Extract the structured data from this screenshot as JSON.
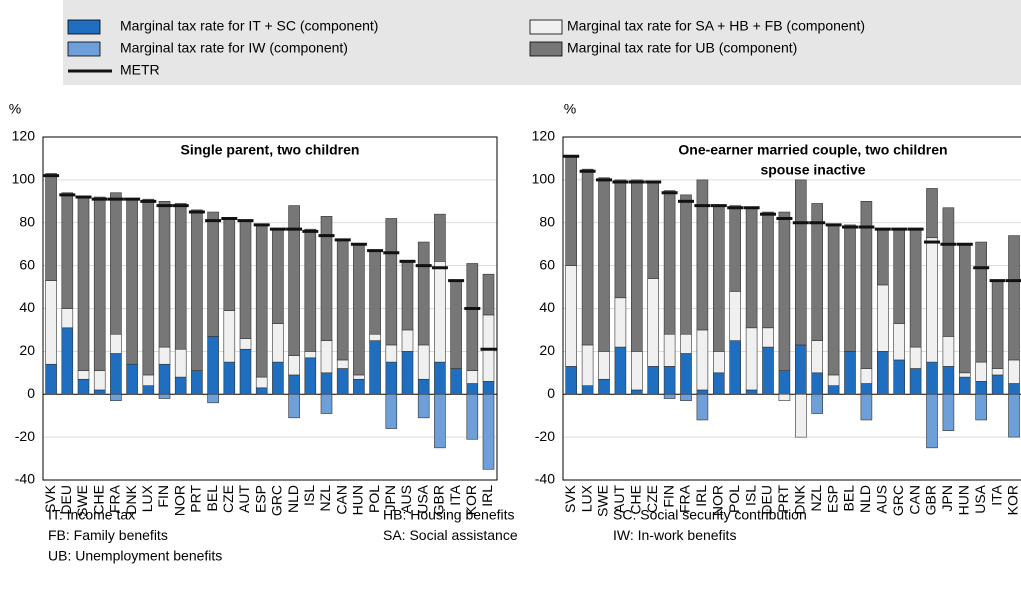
{
  "legend": [
    {
      "name": "Marginal tax rate for IT + SC (component)",
      "color": "#1f6ebf"
    },
    {
      "name": "Marginal tax rate for SA + HB + FB (component)",
      "color": "#f0f0f0"
    },
    {
      "name": "Marginal tax rate for IW (component)",
      "color": "#6f9fd8"
    },
    {
      "name": "Marginal tax rate for UB (component)",
      "color": "#777777"
    },
    {
      "name": "METR",
      "color": "#111111"
    }
  ],
  "chart_data": [
    {
      "type": "bar",
      "title": [
        "Single parent, two children"
      ],
      "y_label": "%",
      "categories": [
        "SVK",
        "DEU",
        "SWE",
        "CHE",
        "FRA",
        "DNK",
        "LUX",
        "FIN",
        "NOR",
        "PRT",
        "BEL",
        "CZE",
        "AUT",
        "ESP",
        "GRC",
        "NLD",
        "ISL",
        "NZL",
        "CAN",
        "HUN",
        "POL",
        "JPN",
        "AUS",
        "USA",
        "GBR",
        "ITA",
        "KOR",
        "IRL"
      ],
      "series": [
        {
          "values": [
            14,
            31,
            7,
            2,
            19,
            14,
            4,
            14,
            8,
            11,
            27,
            15,
            21,
            3,
            15,
            9,
            17,
            10,
            12,
            7,
            25,
            15,
            20,
            7,
            15,
            12,
            5,
            6
          ]
        },
        {
          "values": [
            39,
            9,
            4,
            9,
            9,
            0,
            5,
            8,
            13,
            0,
            0,
            24,
            5,
            5,
            18,
            9,
            3,
            15,
            4,
            2,
            3,
            8,
            10,
            16,
            47,
            0,
            6,
            31
          ]
        },
        {
          "values": [
            0,
            0,
            0,
            0,
            -3,
            0,
            0,
            -2,
            0,
            0,
            -4,
            0,
            0,
            0,
            0,
            -11,
            0,
            -9,
            0,
            0,
            0,
            -16,
            0,
            -11,
            -25,
            0,
            -21,
            -35
          ]
        },
        {
          "values": [
            50,
            54,
            81,
            81,
            66,
            77,
            82,
            68,
            68,
            75,
            58,
            43,
            55,
            71,
            44,
            70,
            57,
            58,
            56,
            61,
            39,
            59,
            32,
            48,
            22,
            41,
            50,
            19
          ]
        }
      ],
      "metr": [
        102,
        93,
        92,
        91,
        91,
        91,
        90,
        88,
        88,
        85,
        81,
        82,
        81,
        79,
        77,
        77,
        76,
        74,
        72,
        70,
        67,
        66,
        62,
        60,
        59,
        53,
        40,
        21
      ],
      "ylim": [
        -40,
        120
      ],
      "yticks": [
        -40,
        -20,
        0,
        20,
        40,
        60,
        80,
        100,
        120
      ],
      "grid": true
    },
    {
      "type": "bar",
      "title": [
        "One-earner married couple, two children",
        "spouse inactive"
      ],
      "y_label": "%",
      "categories": [
        "SVK",
        "LUX",
        "SWE",
        "AUT",
        "CHE",
        "CZE",
        "FIN",
        "FRA",
        "IRL",
        "NOR",
        "POL",
        "ISL",
        "DEU",
        "PRT",
        "DNK",
        "NZL",
        "ESP",
        "BEL",
        "NLD",
        "AUS",
        "GRC",
        "CAN",
        "GBR",
        "JPN",
        "HUN",
        "USA",
        "ITA",
        "KOR"
      ],
      "series": [
        {
          "values": [
            13,
            4,
            7,
            22,
            2,
            13,
            13,
            19,
            2,
            10,
            25,
            2,
            22,
            11,
            23,
            10,
            4,
            20,
            5,
            20,
            16,
            12,
            15,
            13,
            8,
            6,
            9,
            5
          ]
        },
        {
          "values": [
            47,
            19,
            13,
            23,
            18,
            41,
            15,
            9,
            28,
            10,
            23,
            29,
            9,
            -3,
            -20,
            15,
            5,
            0,
            7,
            31,
            17,
            10,
            58,
            14,
            2,
            9,
            3,
            11
          ]
        },
        {
          "values": [
            0,
            0,
            0,
            0,
            0,
            0,
            -2,
            -3,
            -12,
            0,
            0,
            0,
            0,
            0,
            0,
            -9,
            0,
            0,
            -12,
            0,
            0,
            0,
            -25,
            -17,
            0,
            -12,
            0,
            -20
          ]
        },
        {
          "values": [
            51,
            82,
            81,
            55,
            80,
            45,
            67,
            65,
            70,
            68,
            40,
            56,
            54,
            74,
            77,
            64,
            70,
            59,
            78,
            26,
            44,
            55,
            23,
            60,
            60,
            56,
            41,
            58
          ]
        }
      ],
      "metr": [
        111,
        104,
        100,
        99,
        99,
        99,
        94,
        90,
        88,
        88,
        87,
        87,
        84,
        82,
        80,
        80,
        79,
        78,
        78,
        77,
        77,
        77,
        71,
        70,
        70,
        59,
        53,
        53
      ],
      "ylim": [
        -40,
        120
      ],
      "yticks": [
        -40,
        -20,
        0,
        20,
        40,
        60,
        80,
        100,
        120
      ],
      "grid": true
    }
  ],
  "footnotes": [
    [
      "IT:  Income tax",
      "FB:  Family benefits",
      "UB:  Unemployment benefits"
    ],
    [
      "HB: Housing benefits",
      "SA: Social assistance"
    ],
    [
      "SC: Social security contribution",
      "IW: In-work benefits"
    ]
  ]
}
